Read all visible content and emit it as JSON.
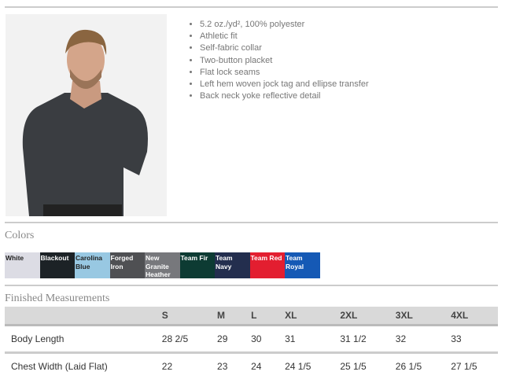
{
  "features": [
    "5.2 oz./yd², 100% polyester",
    "Athletic fit",
    "Self-fabric collar",
    "Two-button placket",
    "Flat lock seams",
    "Left hem woven jock tag and ellipse transfer",
    "Back neck yoke reflective detail"
  ],
  "colors_title": "Colors",
  "colors": [
    {
      "name": "White",
      "hex": "#dcdce4",
      "text": "#222"
    },
    {
      "name": "Blackout",
      "hex": "#1c2226",
      "text": "#fff"
    },
    {
      "name": "Carolina Blue",
      "hex": "#98c8e2",
      "text": "#222"
    },
    {
      "name": "Forged Iron",
      "hex": "#4f5053",
      "text": "#fff"
    },
    {
      "name": "New Granite Heather",
      "hex": "#77787c",
      "text": "#fff"
    },
    {
      "name": "Team Fir",
      "hex": "#0d3b33",
      "text": "#fff"
    },
    {
      "name": "Team Navy",
      "hex": "#232e4e",
      "text": "#fff"
    },
    {
      "name": "Team Red",
      "hex": "#e31e30",
      "text": "#fff"
    },
    {
      "name": "Team Royal",
      "hex": "#1559b5",
      "text": "#fff"
    }
  ],
  "measurements_title": "Finished Measurements",
  "sizes": [
    "S",
    "M",
    "L",
    "XL",
    "2XL",
    "3XL",
    "4XL"
  ],
  "rows": [
    {
      "label": "Body Length",
      "values": [
        "28 2/5",
        "29",
        "30",
        "31",
        "31 1/2",
        "32",
        "33"
      ]
    },
    {
      "label": "Chest Width (Laid Flat)",
      "values": [
        "22",
        "23",
        "24",
        "24 1/5",
        "25 1/5",
        "26 1/5",
        "27 1/5"
      ]
    }
  ]
}
